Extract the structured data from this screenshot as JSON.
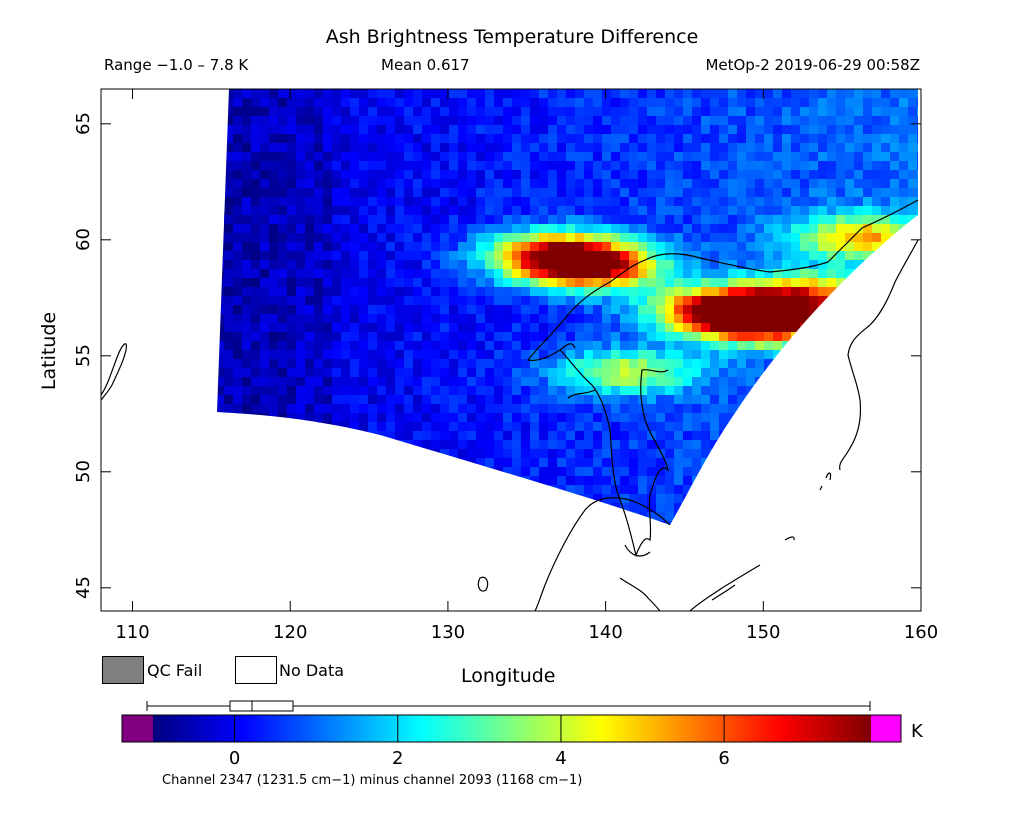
{
  "header": {
    "title": "Ash Brightness Temperature Difference",
    "range": "Range −1.0 – 7.8 K",
    "mean": "Mean 0.617",
    "satellite_time": "MetOp-2 2019-06-29 00:58Z"
  },
  "axes": {
    "xlabel": "Longitude",
    "ylabel": "Latitude",
    "x_ticks": [
      "110",
      "120",
      "130",
      "140",
      "150",
      "160"
    ],
    "y_ticks": [
      "45",
      "50",
      "55",
      "60",
      "65"
    ],
    "xlim": [
      108,
      160
    ],
    "ylim": [
      44,
      66.5
    ]
  },
  "legend": {
    "qc_fail": "QC Fail",
    "no_data": "No Data",
    "colors": {
      "qc_fail": "#7f7f7f",
      "no_data": "#ffffff"
    }
  },
  "colorbar": {
    "ticks": [
      "0",
      "2",
      "4",
      "6"
    ],
    "tick_values": [
      0,
      2,
      4,
      6
    ],
    "range": [
      -1.0,
      7.8
    ],
    "unit": "K",
    "caption": "Channel 2347 (1231.5 cm−1) minus channel 2093 (1168 cm−1)",
    "under_color": "#800080",
    "over_color": "#ff00ff",
    "boxplot": {
      "min": -1.0,
      "q1": 0.0,
      "median": 0.3,
      "q3": 0.8,
      "max": 7.8
    }
  },
  "chart_data": {
    "type": "heatmap",
    "title": "Ash Brightness Temperature Difference",
    "xlabel": "Longitude",
    "ylabel": "Latitude",
    "xlim": [
      108,
      160
    ],
    "ylim": [
      44,
      66.5
    ],
    "value_range": [
      -1.0,
      7.8
    ],
    "mean": 0.617,
    "hotspots": [
      {
        "lon": 138.5,
        "lat": 59.0,
        "value": 7.3
      },
      {
        "lon": 136.5,
        "lat": 59.7,
        "value": 5.0
      },
      {
        "lon": 150.0,
        "lat": 56.6,
        "value": 6.4
      },
      {
        "lon": 147.2,
        "lat": 57.2,
        "value": 6.6
      },
      {
        "lon": 152.5,
        "lat": 57.8,
        "value": 4.6
      },
      {
        "lon": 156.0,
        "lat": 60.3,
        "value": 4.3
      },
      {
        "lon": 141.0,
        "lat": 54.5,
        "value": 3.5
      }
    ]
  }
}
